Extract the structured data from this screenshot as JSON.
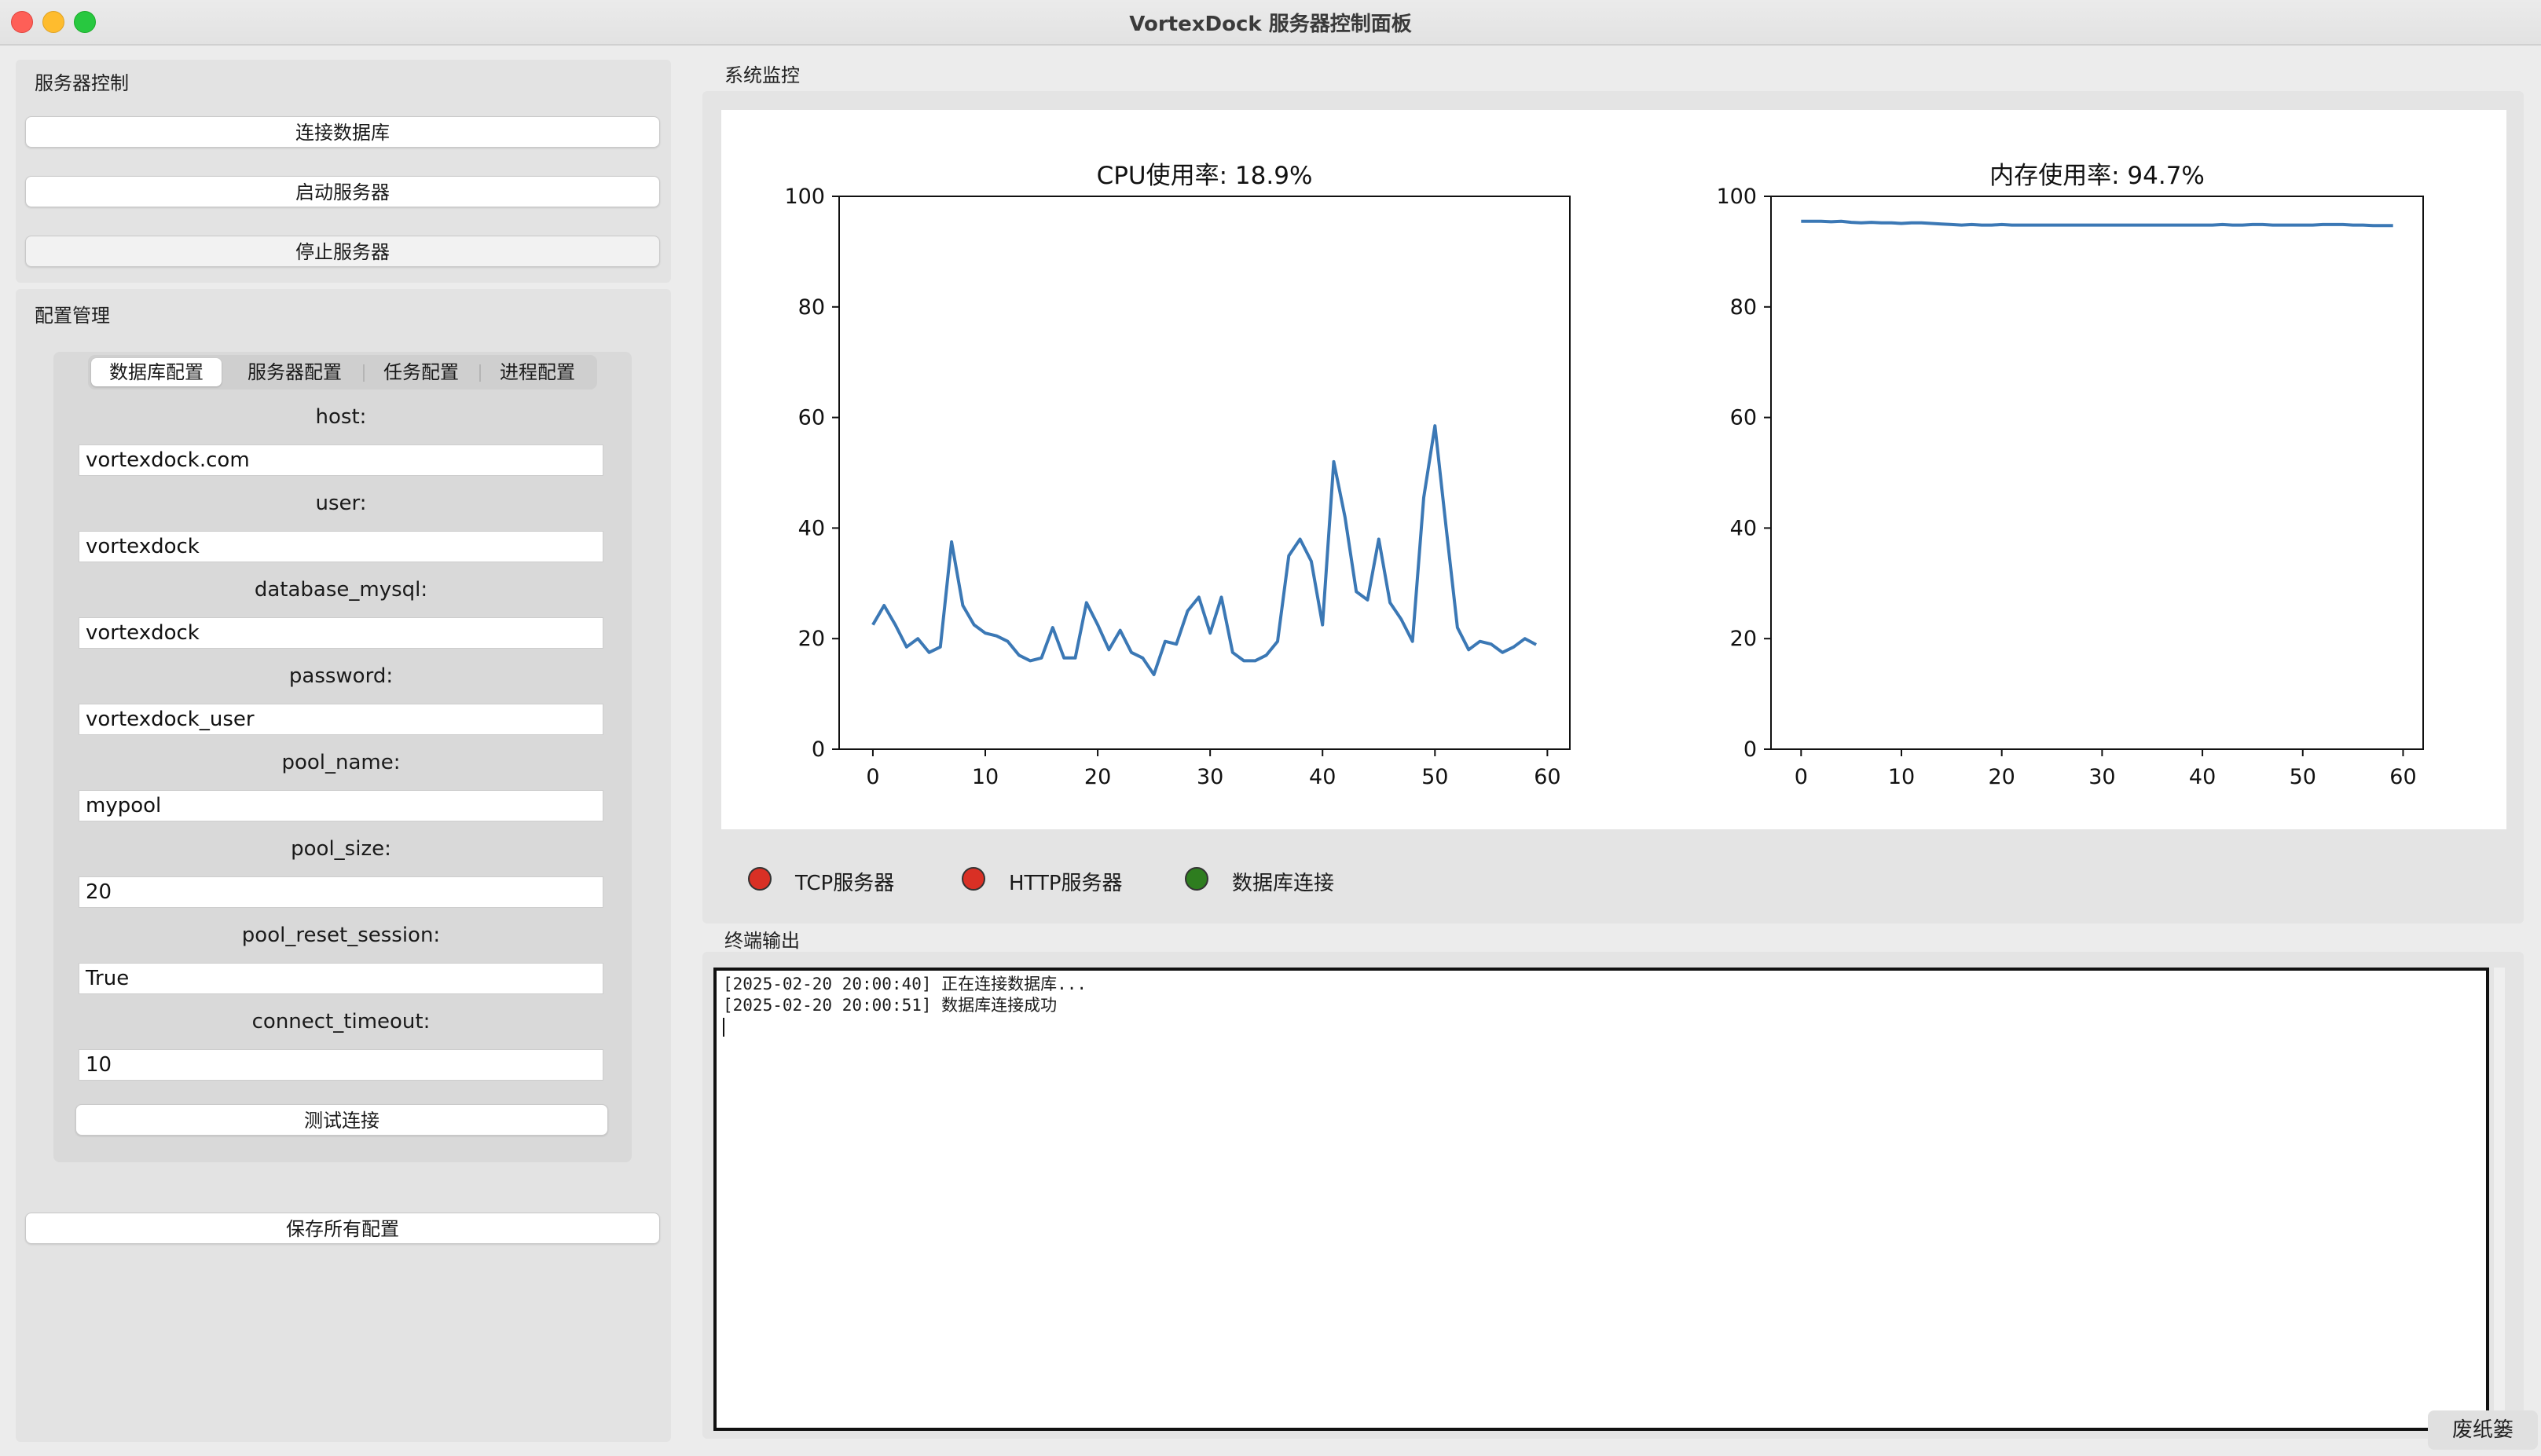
{
  "window": {
    "title": "VortexDock 服务器控制面板"
  },
  "server_control": {
    "label": "服务器控制",
    "connect_db": "连接数据库",
    "start_server": "启动服务器",
    "stop_server": "停止服务器"
  },
  "config": {
    "label": "配置管理",
    "tabs": [
      "数据库配置",
      "服务器配置",
      "任务配置",
      "进程配置"
    ],
    "active_tab": 0,
    "fields": [
      {
        "label": "host:",
        "value": "vortexdock.com"
      },
      {
        "label": "user:",
        "value": "vortexdock"
      },
      {
        "label": "database_mysql:",
        "value": "vortexdock"
      },
      {
        "label": "password:",
        "value": "vortexdock_user"
      },
      {
        "label": "pool_name:",
        "value": "mypool"
      },
      {
        "label": "pool_size:",
        "value": "20"
      },
      {
        "label": "pool_reset_session:",
        "value": "True"
      },
      {
        "label": "connect_timeout:",
        "value": "10"
      }
    ],
    "test_button": "测试连接",
    "save_all": "保存所有配置"
  },
  "monitor": {
    "label": "系统监控",
    "status": [
      {
        "label": "TCP服务器",
        "color": "#d93025"
      },
      {
        "label": "HTTP服务器",
        "color": "#d93025"
      },
      {
        "label": "数据库连接",
        "color": "#2e7d1f"
      }
    ]
  },
  "chart_data": [
    {
      "type": "line",
      "title": "CPU使用率: 18.9%",
      "xlabel": "",
      "ylabel": "",
      "xlim": [
        -3,
        62
      ],
      "ylim": [
        0,
        100
      ],
      "xticks": [
        0,
        10,
        20,
        30,
        40,
        50,
        60
      ],
      "yticks": [
        0,
        20,
        40,
        60,
        80,
        100
      ],
      "grid": false,
      "color": "#3b78b5",
      "x": [
        0,
        1,
        2,
        3,
        4,
        5,
        6,
        7,
        8,
        9,
        10,
        11,
        12,
        13,
        14,
        15,
        16,
        17,
        18,
        19,
        20,
        21,
        22,
        23,
        24,
        25,
        26,
        27,
        28,
        29,
        30,
        31,
        32,
        33,
        34,
        35,
        36,
        37,
        38,
        39,
        40,
        41,
        42,
        43,
        44,
        45,
        46,
        47,
        48,
        49,
        50,
        51,
        52,
        53,
        54,
        55,
        56,
        57,
        58,
        59
      ],
      "y": [
        22.5,
        26,
        22.5,
        18.5,
        20,
        17.5,
        18.5,
        37.5,
        26,
        22.5,
        21,
        20.5,
        19.5,
        17,
        16,
        16.5,
        22,
        16.5,
        16.5,
        26.5,
        22.5,
        18,
        21.5,
        17.5,
        16.5,
        13.5,
        19.5,
        19,
        25,
        27.5,
        21,
        27.5,
        17.5,
        16,
        16,
        17,
        19.5,
        35,
        38,
        34,
        22.5,
        52,
        42,
        28.5,
        27,
        38,
        26.5,
        23.5,
        19.5,
        45.5,
        58.5,
        40,
        22,
        18,
        19.5,
        19,
        17.5,
        18.5,
        20,
        18.9
      ]
    },
    {
      "type": "line",
      "title": "内存使用率: 94.7%",
      "xlabel": "",
      "ylabel": "",
      "xlim": [
        -3,
        62
      ],
      "ylim": [
        0,
        100
      ],
      "xticks": [
        0,
        10,
        20,
        30,
        40,
        50,
        60
      ],
      "yticks": [
        0,
        20,
        40,
        60,
        80,
        100
      ],
      "grid": false,
      "color": "#3b78b5",
      "x": [
        0,
        1,
        2,
        3,
        4,
        5,
        6,
        7,
        8,
        9,
        10,
        11,
        12,
        13,
        14,
        15,
        16,
        17,
        18,
        19,
        20,
        21,
        22,
        23,
        24,
        25,
        26,
        27,
        28,
        29,
        30,
        31,
        32,
        33,
        34,
        35,
        36,
        37,
        38,
        39,
        40,
        41,
        42,
        43,
        44,
        45,
        46,
        47,
        48,
        49,
        50,
        51,
        52,
        53,
        54,
        55,
        56,
        57,
        58,
        59
      ],
      "y": [
        95.5,
        95.5,
        95.5,
        95.4,
        95.5,
        95.3,
        95.2,
        95.3,
        95.2,
        95.2,
        95.1,
        95.2,
        95.2,
        95.1,
        95.0,
        94.9,
        94.8,
        94.9,
        94.8,
        94.8,
        94.9,
        94.8,
        94.8,
        94.8,
        94.8,
        94.8,
        94.8,
        94.8,
        94.8,
        94.8,
        94.8,
        94.8,
        94.8,
        94.8,
        94.8,
        94.8,
        94.8,
        94.8,
        94.8,
        94.8,
        94.8,
        94.8,
        94.9,
        94.8,
        94.8,
        94.9,
        94.9,
        94.8,
        94.8,
        94.8,
        94.8,
        94.8,
        94.9,
        94.9,
        94.9,
        94.8,
        94.8,
        94.7,
        94.7,
        94.7
      ]
    }
  ],
  "terminal": {
    "label": "终端输出",
    "lines": [
      "[2025-02-20 20:00:40] 正在连接数据库...",
      "[2025-02-20 20:00:51] 数据库连接成功"
    ]
  },
  "dock": {
    "trash_label": "废纸篓"
  }
}
